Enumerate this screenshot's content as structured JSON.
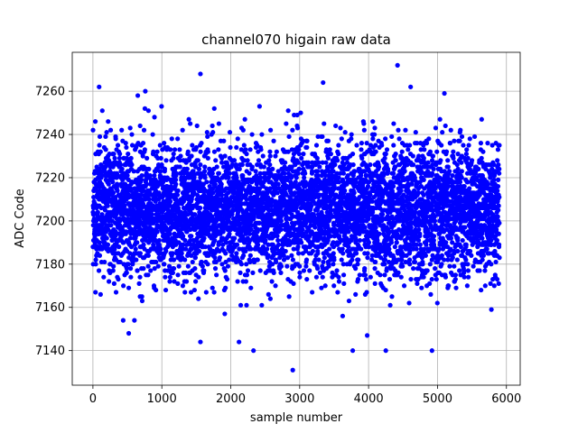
{
  "chart_data": {
    "type": "scatter",
    "title": "channel070 higain raw data",
    "xlabel": "sample number",
    "ylabel": "ADC Code",
    "xlim": [
      -300,
      6200
    ],
    "ylim": [
      7124,
      7278
    ],
    "xticks": [
      0,
      1000,
      2000,
      3000,
      4000,
      5000,
      6000
    ],
    "yticks": [
      7140,
      7160,
      7180,
      7200,
      7220,
      7240,
      7260
    ],
    "grid": true,
    "marker_color": "#0000ff",
    "n_samples": 5900,
    "center": 7205,
    "spread_sd": 15,
    "notable_points": [
      {
        "x": 2900,
        "y": 7131
      },
      {
        "x": 4420,
        "y": 7272
      },
      {
        "x": 1560,
        "y": 7268
      },
      {
        "x": 90,
        "y": 7262
      },
      {
        "x": 3340,
        "y": 7264
      },
      {
        "x": 4610,
        "y": 7262
      },
      {
        "x": 5100,
        "y": 7259
      },
      {
        "x": 1560,
        "y": 7144
      },
      {
        "x": 2120,
        "y": 7144
      },
      {
        "x": 2330,
        "y": 7140
      },
      {
        "x": 3770,
        "y": 7140
      },
      {
        "x": 4250,
        "y": 7140
      },
      {
        "x": 4920,
        "y": 7140
      },
      {
        "x": 520,
        "y": 7148
      },
      {
        "x": 3980,
        "y": 7147
      },
      {
        "x": 760,
        "y": 7260
      }
    ]
  }
}
